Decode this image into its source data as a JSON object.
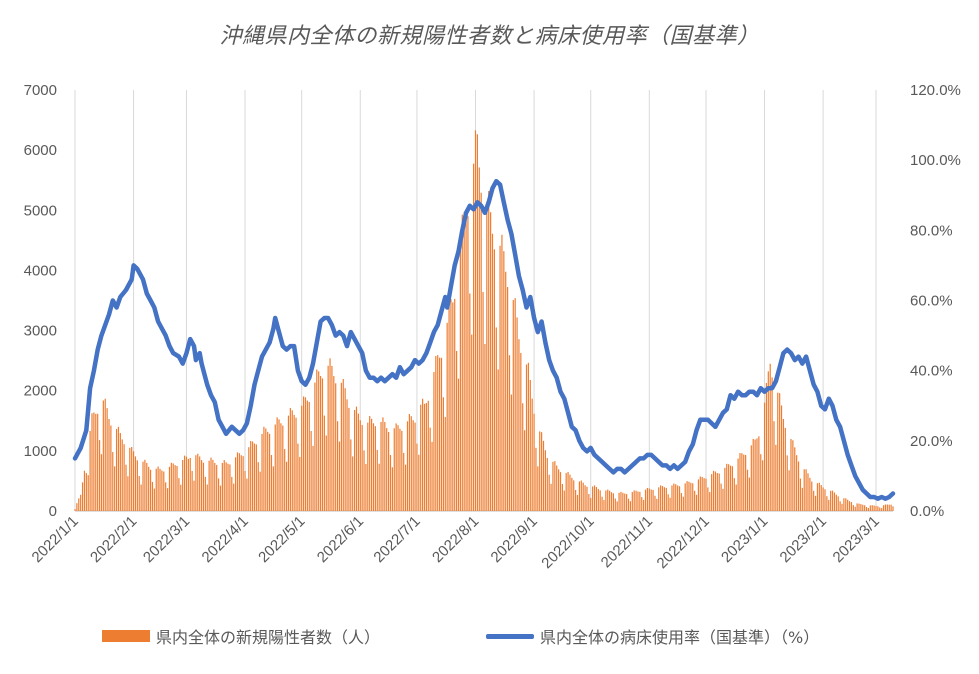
{
  "chart_data": {
    "type": "bar+line",
    "title": "沖縄県内全体の新規陽性者数と病床使用率（国基準）",
    "x_tick_labels": [
      "2022/1/1",
      "2022/2/1",
      "2022/3/1",
      "2022/4/1",
      "2022/5/1",
      "2022/6/1",
      "2022/7/1",
      "2022/8/1",
      "2022/9/1",
      "2022/10/1",
      "2022/11/1",
      "2022/12/1",
      "2023/1/1",
      "2023/2/1",
      "2023/3/1"
    ],
    "y_left": {
      "ticks": [
        "0",
        "1000",
        "2000",
        "3000",
        "4000",
        "5000",
        "6000",
        "7000"
      ],
      "range": [
        0,
        7000
      ]
    },
    "y_right": {
      "ticks": [
        "0.0%",
        "20.0%",
        "40.0%",
        "60.0%",
        "80.0%",
        "100.0%",
        "120.0%"
      ],
      "range": [
        0,
        120
      ]
    },
    "x_range_days": [
      0,
      433
    ],
    "grid": "vertical-only",
    "legend_position": "bottom",
    "series": [
      {
        "name": "県内全体の新規陽性者数（人）",
        "type": "bar",
        "color": "#ED7D31",
        "axis": "left",
        "keypoints": [
          [
            0,
            60
          ],
          [
            3,
            250
          ],
          [
            6,
            900
          ],
          [
            9,
            1450
          ],
          [
            12,
            1650
          ],
          [
            15,
            1750
          ],
          [
            18,
            1500
          ],
          [
            21,
            1350
          ],
          [
            24,
            1200
          ],
          [
            27,
            1100
          ],
          [
            30,
            950
          ],
          [
            35,
            800
          ],
          [
            40,
            700
          ],
          [
            45,
            650
          ],
          [
            50,
            700
          ],
          [
            55,
            780
          ],
          [
            60,
            850
          ],
          [
            62,
            950
          ],
          [
            65,
            850
          ],
          [
            70,
            800
          ],
          [
            75,
            780
          ],
          [
            80,
            750
          ],
          [
            85,
            850
          ],
          [
            90,
            950
          ],
          [
            95,
            1100
          ],
          [
            100,
            1250
          ],
          [
            105,
            1350
          ],
          [
            110,
            1450
          ],
          [
            115,
            1550
          ],
          [
            118,
            1600
          ],
          [
            121,
            1700
          ],
          [
            125,
            1900
          ],
          [
            128,
            2100
          ],
          [
            131,
            2250
          ],
          [
            134,
            2300
          ],
          [
            137,
            2200
          ],
          [
            140,
            2100
          ],
          [
            145,
            1750
          ],
          [
            150,
            1500
          ],
          [
            155,
            1400
          ],
          [
            160,
            1450
          ],
          [
            165,
            1350
          ],
          [
            170,
            1300
          ],
          [
            175,
            1400
          ],
          [
            180,
            1500
          ],
          [
            182,
            1700
          ],
          [
            185,
            1650
          ],
          [
            190,
            2200
          ],
          [
            195,
            2700
          ],
          [
            200,
            3400
          ],
          [
            205,
            4400
          ],
          [
            208,
            5000
          ],
          [
            211,
            5500
          ],
          [
            213,
            5800
          ],
          [
            216,
            5200
          ],
          [
            220,
            4600
          ],
          [
            225,
            4200
          ],
          [
            230,
            3700
          ],
          [
            235,
            2800
          ],
          [
            240,
            2200
          ],
          [
            243,
            1650
          ],
          [
            245,
            1350
          ],
          [
            250,
            900
          ],
          [
            255,
            700
          ],
          [
            260,
            600
          ],
          [
            265,
            500
          ],
          [
            270,
            420
          ],
          [
            275,
            380
          ],
          [
            280,
            330
          ],
          [
            285,
            300
          ],
          [
            290,
            280
          ],
          [
            295,
            300
          ],
          [
            300,
            330
          ],
          [
            305,
            350
          ],
          [
            310,
            380
          ],
          [
            315,
            400
          ],
          [
            320,
            420
          ],
          [
            325,
            450
          ],
          [
            330,
            500
          ],
          [
            335,
            560
          ],
          [
            340,
            620
          ],
          [
            345,
            700
          ],
          [
            350,
            800
          ],
          [
            355,
            950
          ],
          [
            360,
            1100
          ],
          [
            363,
            1350
          ],
          [
            366,
            1900
          ],
          [
            368,
            2400
          ],
          [
            371,
            2000
          ],
          [
            375,
            1500
          ],
          [
            380,
            1050
          ],
          [
            385,
            700
          ],
          [
            390,
            500
          ],
          [
            395,
            400
          ],
          [
            400,
            320
          ],
          [
            405,
            230
          ],
          [
            410,
            160
          ],
          [
            415,
            110
          ],
          [
            420,
            90
          ],
          [
            425,
            80
          ],
          [
            430,
            100
          ],
          [
            433,
            110
          ]
        ]
      },
      {
        "name": "県内全体の病床使用率（国基準）（%）",
        "type": "line",
        "color": "#4472C4",
        "axis": "right",
        "keypoints": [
          [
            0,
            15
          ],
          [
            3,
            18
          ],
          [
            6,
            23
          ],
          [
            8,
            35
          ],
          [
            10,
            40
          ],
          [
            12,
            46
          ],
          [
            14,
            50
          ],
          [
            18,
            56
          ],
          [
            20,
            60
          ],
          [
            22,
            58
          ],
          [
            24,
            61
          ],
          [
            27,
            63
          ],
          [
            30,
            66
          ],
          [
            31,
            70
          ],
          [
            33,
            69
          ],
          [
            36,
            66
          ],
          [
            38,
            62
          ],
          [
            40,
            60
          ],
          [
            42,
            58
          ],
          [
            44,
            54
          ],
          [
            46,
            52
          ],
          [
            48,
            50
          ],
          [
            50,
            47
          ],
          [
            52,
            45
          ],
          [
            55,
            44
          ],
          [
            57,
            42
          ],
          [
            59,
            45
          ],
          [
            61,
            49
          ],
          [
            63,
            47
          ],
          [
            64,
            43
          ],
          [
            66,
            45
          ],
          [
            67,
            42
          ],
          [
            70,
            36
          ],
          [
            72,
            33
          ],
          [
            74,
            31
          ],
          [
            76,
            26
          ],
          [
            78,
            24
          ],
          [
            80,
            22
          ],
          [
            83,
            24
          ],
          [
            85,
            23
          ],
          [
            87,
            22
          ],
          [
            89,
            23
          ],
          [
            91,
            25
          ],
          [
            93,
            30
          ],
          [
            95,
            36
          ],
          [
            97,
            40
          ],
          [
            99,
            44
          ],
          [
            101,
            46
          ],
          [
            103,
            48
          ],
          [
            105,
            52
          ],
          [
            106,
            55
          ],
          [
            108,
            51
          ],
          [
            110,
            47
          ],
          [
            112,
            46
          ],
          [
            114,
            47
          ],
          [
            116,
            47
          ],
          [
            118,
            40
          ],
          [
            120,
            37
          ],
          [
            122,
            36
          ],
          [
            124,
            38
          ],
          [
            126,
            42
          ],
          [
            128,
            48
          ],
          [
            130,
            54
          ],
          [
            132,
            55
          ],
          [
            134,
            55
          ],
          [
            136,
            53
          ],
          [
            138,
            50
          ],
          [
            140,
            51
          ],
          [
            142,
            50
          ],
          [
            144,
            47
          ],
          [
            146,
            51
          ],
          [
            148,
            49
          ],
          [
            150,
            47
          ],
          [
            152,
            45
          ],
          [
            154,
            40
          ],
          [
            156,
            38
          ],
          [
            158,
            38
          ],
          [
            160,
            37
          ],
          [
            162,
            38
          ],
          [
            164,
            37
          ],
          [
            166,
            38
          ],
          [
            168,
            39
          ],
          [
            170,
            38
          ],
          [
            172,
            41
          ],
          [
            174,
            39
          ],
          [
            176,
            40
          ],
          [
            178,
            41
          ],
          [
            180,
            43
          ],
          [
            182,
            42
          ],
          [
            184,
            43
          ],
          [
            186,
            45
          ],
          [
            188,
            48
          ],
          [
            190,
            51
          ],
          [
            192,
            53
          ],
          [
            194,
            57
          ],
          [
            196,
            61
          ],
          [
            197,
            58
          ],
          [
            199,
            64
          ],
          [
            201,
            70
          ],
          [
            203,
            74
          ],
          [
            205,
            80
          ],
          [
            207,
            85
          ],
          [
            209,
            87
          ],
          [
            211,
            86
          ],
          [
            213,
            88
          ],
          [
            215,
            87
          ],
          [
            217,
            85
          ],
          [
            219,
            88
          ],
          [
            221,
            92
          ],
          [
            223,
            94
          ],
          [
            225,
            93
          ],
          [
            227,
            88
          ],
          [
            229,
            83
          ],
          [
            231,
            79
          ],
          [
            233,
            73
          ],
          [
            235,
            67
          ],
          [
            237,
            63
          ],
          [
            239,
            58
          ],
          [
            241,
            61
          ],
          [
            243,
            55
          ],
          [
            245,
            51
          ],
          [
            247,
            54
          ],
          [
            249,
            48
          ],
          [
            251,
            43
          ],
          [
            253,
            40
          ],
          [
            255,
            38
          ],
          [
            257,
            34
          ],
          [
            259,
            32
          ],
          [
            261,
            28
          ],
          [
            263,
            24
          ],
          [
            265,
            23
          ],
          [
            267,
            20
          ],
          [
            269,
            18
          ],
          [
            271,
            17
          ],
          [
            273,
            18
          ],
          [
            275,
            16
          ],
          [
            277,
            15
          ],
          [
            279,
            14
          ],
          [
            281,
            13
          ],
          [
            283,
            12
          ],
          [
            285,
            11
          ],
          [
            287,
            12
          ],
          [
            289,
            12
          ],
          [
            291,
            11
          ],
          [
            293,
            12
          ],
          [
            295,
            13
          ],
          [
            297,
            14
          ],
          [
            299,
            15
          ],
          [
            301,
            15
          ],
          [
            303,
            16
          ],
          [
            305,
            16
          ],
          [
            307,
            15
          ],
          [
            309,
            14
          ],
          [
            311,
            13
          ],
          [
            313,
            13
          ],
          [
            315,
            12
          ],
          [
            317,
            13
          ],
          [
            319,
            12
          ],
          [
            321,
            13
          ],
          [
            323,
            14
          ],
          [
            325,
            17
          ],
          [
            327,
            19
          ],
          [
            329,
            23
          ],
          [
            331,
            26
          ],
          [
            333,
            26
          ],
          [
            335,
            26
          ],
          [
            337,
            25
          ],
          [
            339,
            24
          ],
          [
            341,
            26
          ],
          [
            343,
            28
          ],
          [
            345,
            29
          ],
          [
            347,
            33
          ],
          [
            349,
            32
          ],
          [
            351,
            34
          ],
          [
            353,
            33
          ],
          [
            355,
            33
          ],
          [
            357,
            34
          ],
          [
            359,
            34
          ],
          [
            361,
            33
          ],
          [
            363,
            35
          ],
          [
            365,
            34
          ],
          [
            367,
            35
          ],
          [
            369,
            35
          ],
          [
            371,
            37
          ],
          [
            373,
            41
          ],
          [
            375,
            45
          ],
          [
            377,
            46
          ],
          [
            379,
            45
          ],
          [
            381,
            43
          ],
          [
            383,
            44
          ],
          [
            385,
            42
          ],
          [
            387,
            44
          ],
          [
            389,
            40
          ],
          [
            391,
            36
          ],
          [
            393,
            34
          ],
          [
            395,
            30
          ],
          [
            397,
            29
          ],
          [
            399,
            32
          ],
          [
            401,
            30
          ],
          [
            403,
            26
          ],
          [
            405,
            24
          ],
          [
            407,
            20
          ],
          [
            409,
            16
          ],
          [
            411,
            13
          ],
          [
            413,
            10
          ],
          [
            415,
            8
          ],
          [
            417,
            6
          ],
          [
            419,
            5
          ],
          [
            421,
            4
          ],
          [
            423,
            4
          ],
          [
            425,
            3.5
          ],
          [
            427,
            4
          ],
          [
            429,
            3.5
          ],
          [
            431,
            4
          ],
          [
            433,
            5
          ]
        ]
      }
    ]
  }
}
